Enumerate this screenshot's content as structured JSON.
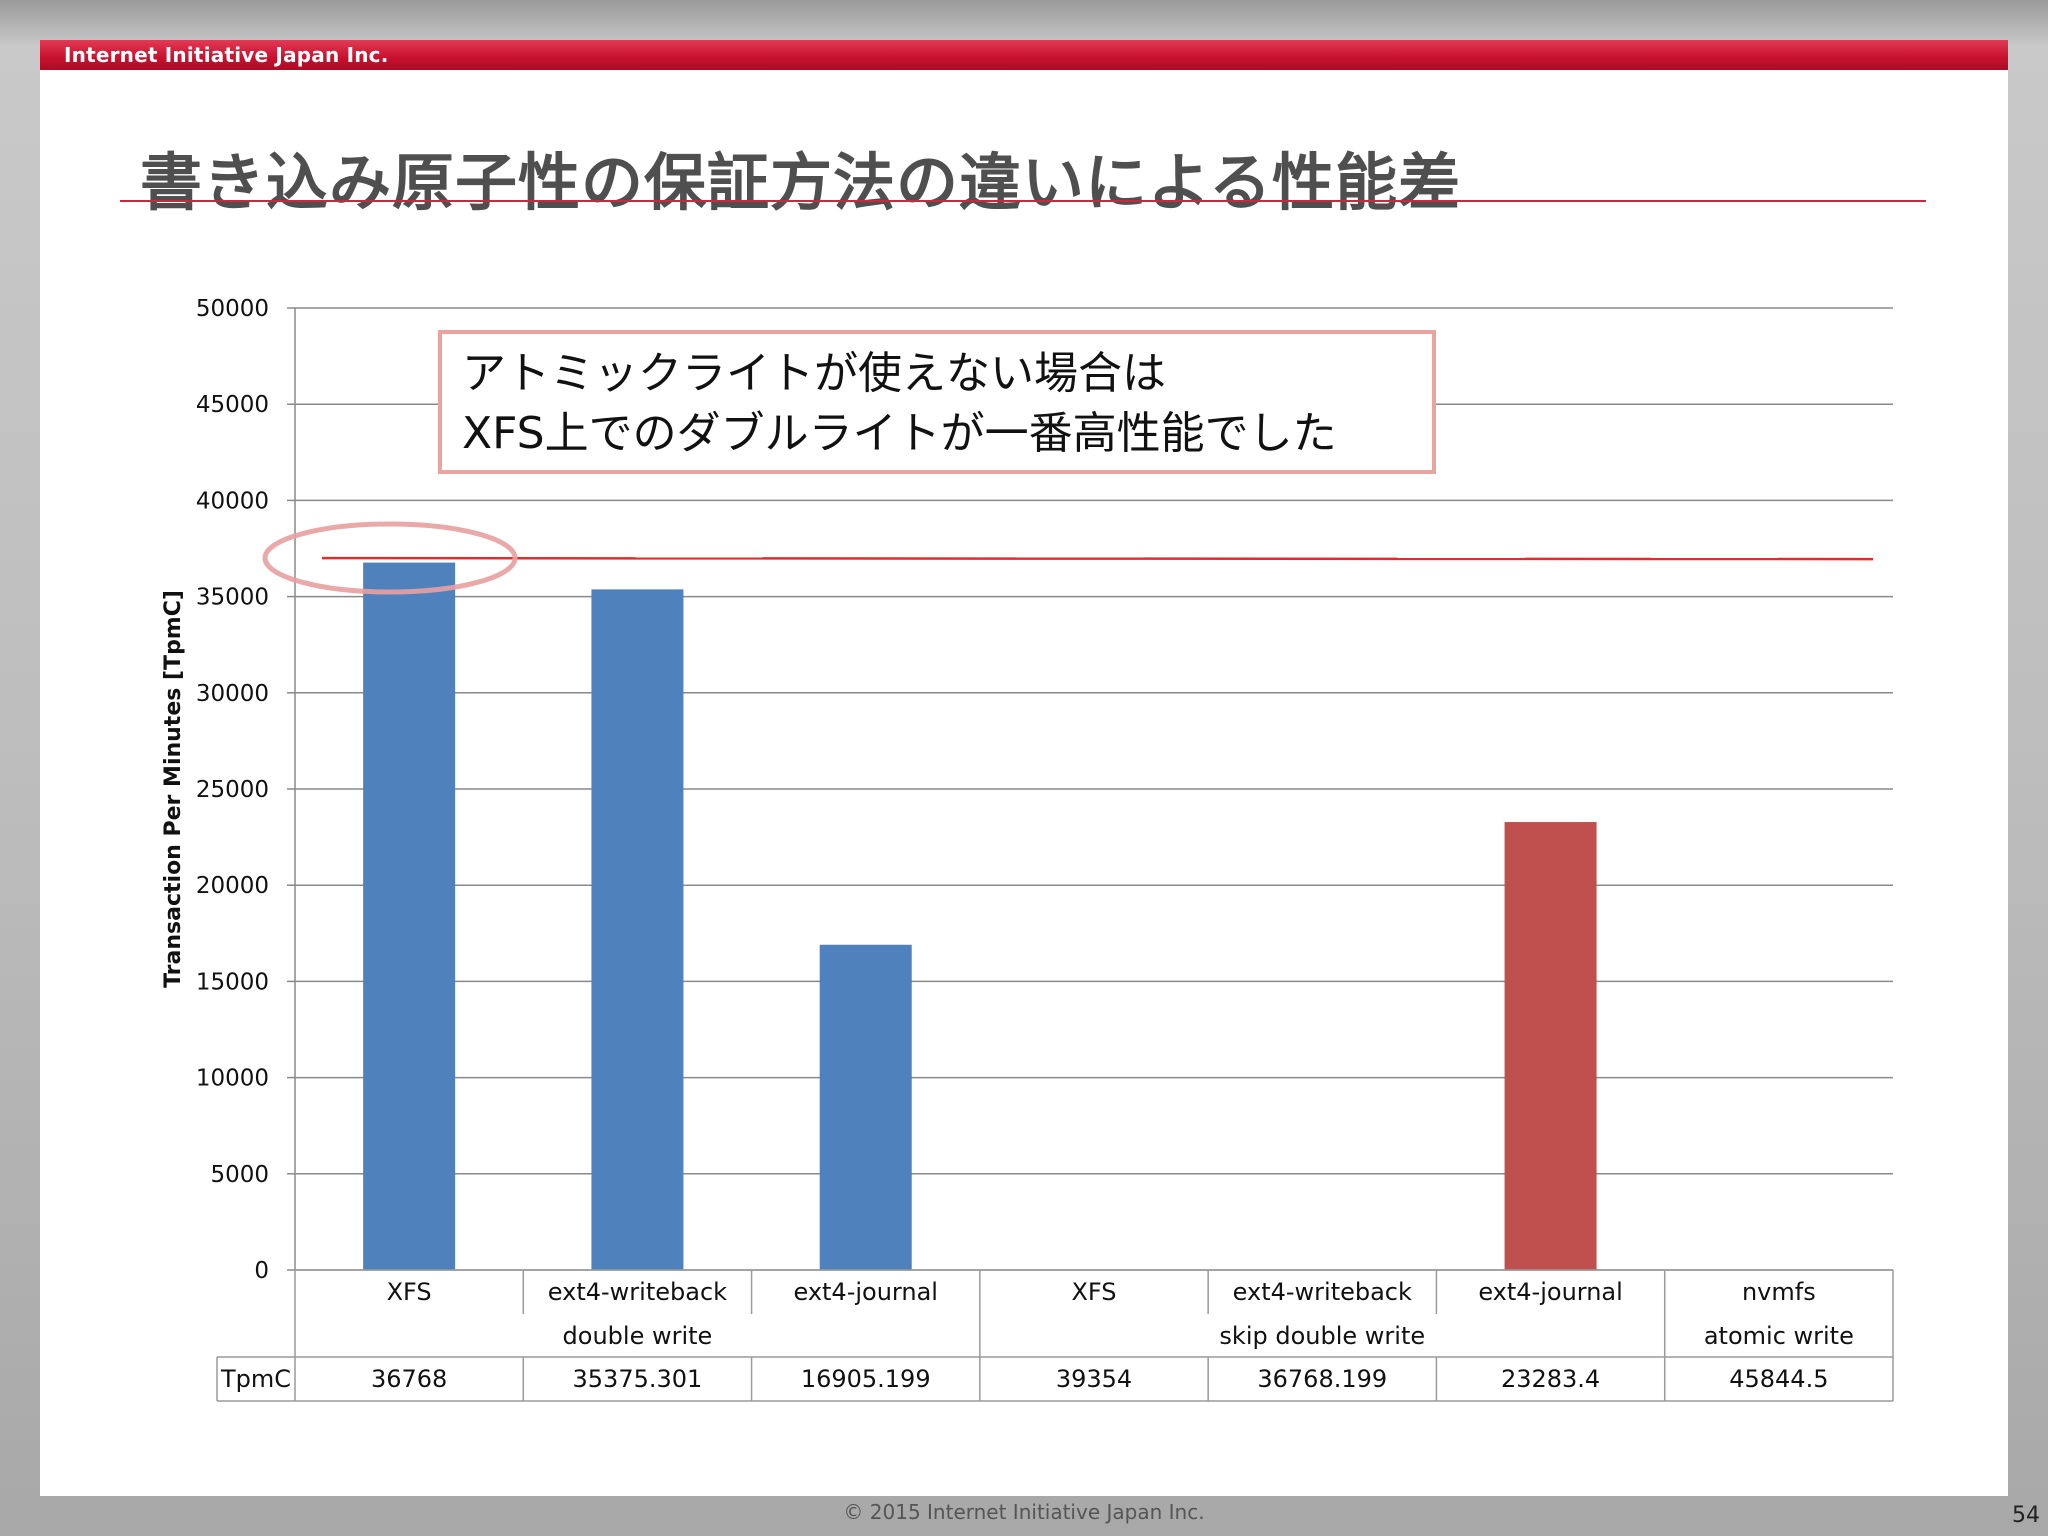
{
  "header": {
    "company": "Internet Initiative Japan Inc."
  },
  "title": "書き込み原子性の保証方法の違いによる性能差",
  "callout": {
    "line1": "アトミックライトが使えない場合は",
    "line2": "XFS上でのダブルライトが一番高性能でした"
  },
  "footer": {
    "copyright": "© 2015 Internet Initiative Japan Inc.",
    "page": "54"
  },
  "colors": {
    "accent": "#c8102e",
    "bar_blue": "#4f81bd",
    "bar_red": "#c0504d",
    "callout_border": "#eaa39e",
    "highlight": "#e8a0a0"
  },
  "chart_data": {
    "type": "bar",
    "categories": [
      "XFS",
      "ext4-writeback",
      "ext4-journal",
      "XFS",
      "ext4-writeback",
      "ext4-journal",
      "nvmfs"
    ],
    "groups": [
      {
        "label": "double write",
        "from": 0,
        "to": 2
      },
      {
        "label": "skip double write",
        "from": 3,
        "to": 5
      },
      {
        "label": "atomic write",
        "from": 6,
        "to": 6
      }
    ],
    "table_row_label": "TpmC",
    "table_values": [
      "36768",
      "35375.301",
      "16905.199",
      "39354",
      "36768.199",
      "23283.4",
      "45844.5"
    ],
    "bars": [
      36768,
      35375.301,
      16905.199,
      null,
      null,
      23283.4,
      null
    ],
    "bar_colors": [
      "#4f81bd",
      "#4f81bd",
      "#4f81bd",
      "#4f81bd",
      "#4f81bd",
      "#c0504d",
      "#4f81bd"
    ],
    "ylabel": "Transaction Per Minutes [TpmC]",
    "ylim": [
      0,
      50000
    ],
    "yticks": [
      0,
      5000,
      10000,
      15000,
      20000,
      25000,
      30000,
      35000,
      40000,
      45000,
      50000
    ],
    "reference_line": 37000,
    "grid": true
  }
}
